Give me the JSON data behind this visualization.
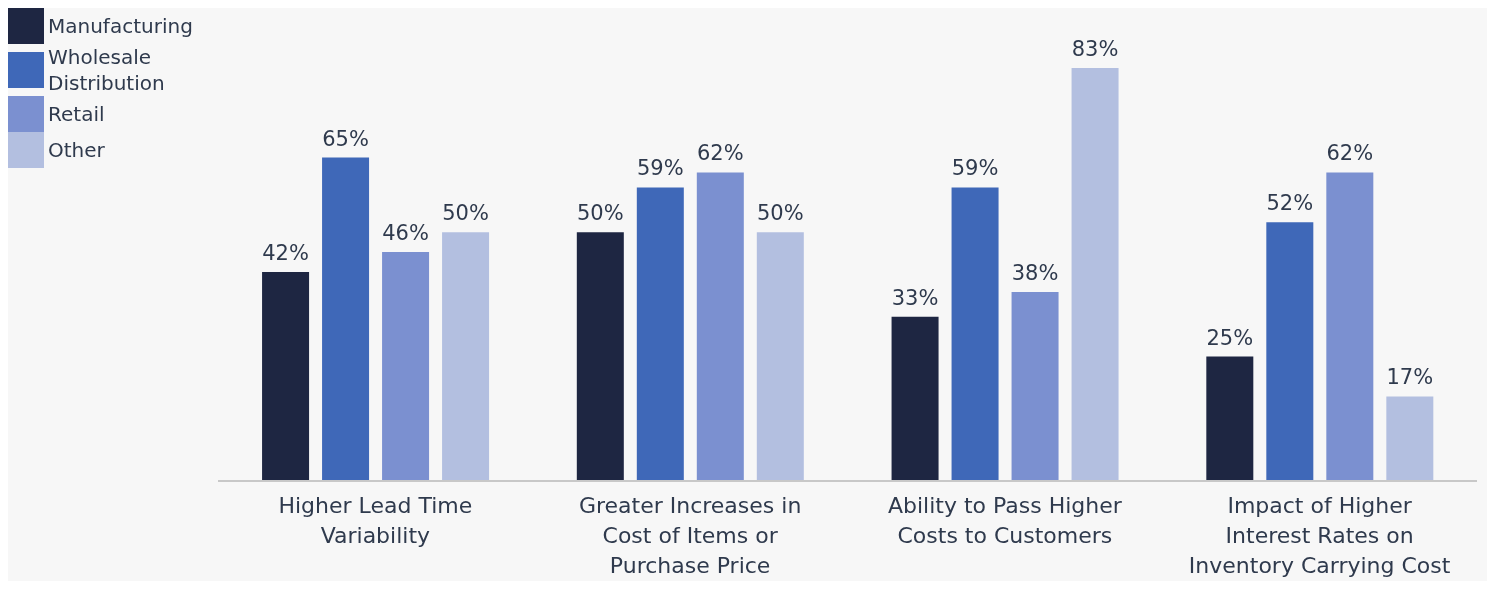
{
  "chart_data": {
    "type": "bar",
    "categories": [
      "Higher Lead Time Variability",
      "Greater Increases in Cost of Items or Purchase Price",
      "Ability to Pass Higher Costs to Customers",
      "Impact of Higher Interest Rates on Inventory Carrying Cost"
    ],
    "series": [
      {
        "name": "Manufacturing",
        "color": "#1e2642",
        "values": [
          42,
          50,
          33,
          25
        ],
        "value_labels": [
          "42%",
          "50%",
          "33%",
          "25%"
        ]
      },
      {
        "name": "Wholesale Distribution",
        "color": "#3f68b8",
        "values": [
          65,
          59,
          59,
          52
        ],
        "value_labels": [
          "65%",
          "59%",
          "59%",
          "52%"
        ]
      },
      {
        "name": "Retail",
        "color": "#7b90d0",
        "values": [
          46,
          62,
          38,
          62
        ],
        "value_labels": [
          "46%",
          "62%",
          "38%",
          "62%"
        ]
      },
      {
        "name": "Other",
        "color": "#b3bfe0",
        "values": [
          50,
          50,
          83,
          17
        ],
        "value_labels": [
          "50%",
          "50%",
          "83%",
          "17%"
        ]
      }
    ],
    "grid": false,
    "legend": "top left"
  }
}
